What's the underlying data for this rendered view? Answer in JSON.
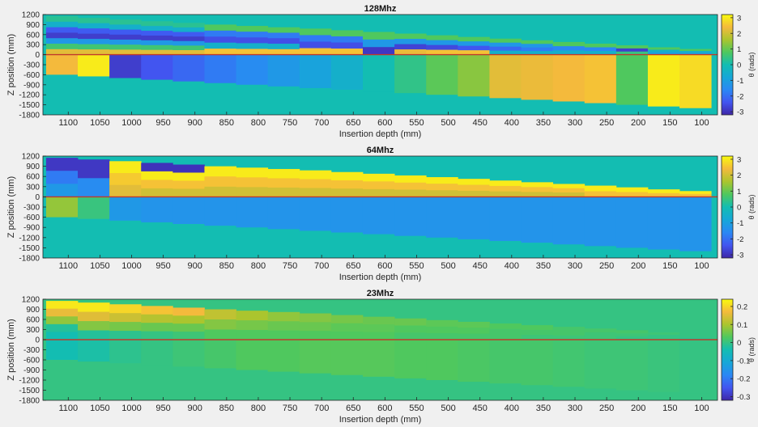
{
  "figure": {
    "colormap": "parula",
    "reference_line_color": "#c0392b",
    "background": "#f0f0f0"
  },
  "chart_data": [
    {
      "type": "heatmap",
      "title": "128Mhz",
      "xlabel": "Insertion depth (mm)",
      "ylabel": "Z position (mm)",
      "colorbar_label": "θ (rads)",
      "xlim": [
        1140,
        75
      ],
      "ylim": [
        -1800,
        1200
      ],
      "x_ticks": [
        "1100",
        "1050",
        "1000",
        "950",
        "900",
        "850",
        "800",
        "750",
        "700",
        "650",
        "600",
        "550",
        "500",
        "450",
        "400",
        "350",
        "300",
        "250",
        "200",
        "150",
        "100"
      ],
      "y_ticks": [
        "1200",
        "900",
        "600",
        "300",
        "0",
        "-300",
        "-600",
        "-900",
        "-1200",
        "-1500",
        "-1800"
      ],
      "clim": [
        -3.2,
        3.2
      ],
      "colorbar_ticks": [
        "3",
        "2",
        "1",
        "0",
        "-1",
        "-2",
        "-3"
      ],
      "reference_line_z": 0,
      "columns": [
        {
          "depth": 1110,
          "ztop": 1150,
          "zbottom": -600,
          "upper": [
            0.3,
            -0.5,
            -2.3,
            -2.8,
            -1.2,
            0.6,
            2.2
          ],
          "lower": 2.4
        },
        {
          "depth": 1060,
          "ztop": 1100,
          "zbottom": -650,
          "upper": [
            0.3,
            -0.5,
            -2.3,
            -2.8,
            -1.2,
            0.6,
            2.2
          ],
          "lower": 3.0
        },
        {
          "depth": 1010,
          "ztop": 1050,
          "zbottom": -700,
          "upper": [
            0.3,
            -0.5,
            -2.3,
            -2.8,
            -1.2,
            0.6,
            2.2
          ],
          "lower": -2.8
        },
        {
          "depth": 960,
          "ztop": 1000,
          "zbottom": -750,
          "upper": [
            0.3,
            -0.5,
            -2.3,
            -2.8,
            -1.2,
            0.6,
            2.2
          ],
          "lower": -2.4
        },
        {
          "depth": 910,
          "ztop": 950,
          "zbottom": -800,
          "upper": [
            0.3,
            -0.5,
            -2.3,
            -2.8,
            -1.2,
            0.6,
            2.2
          ],
          "lower": -2.1
        },
        {
          "depth": 860,
          "ztop": 900,
          "zbottom": -850,
          "upper": [
            0.8,
            -1.8,
            -2.5,
            -0.5,
            2.5
          ],
          "lower": -1.8
        },
        {
          "depth": 810,
          "ztop": 860,
          "zbottom": -900,
          "upper": [
            0.8,
            -1.8,
            -2.5,
            -0.5,
            2.5
          ],
          "lower": -1.5
        },
        {
          "depth": 760,
          "ztop": 820,
          "zbottom": -950,
          "upper": [
            0.8,
            -1.8,
            -2.5,
            -0.5,
            2.5
          ],
          "lower": -1.2
        },
        {
          "depth": 710,
          "ztop": 780,
          "zbottom": -1000,
          "upper": [
            0.8,
            -1.8,
            -2.5,
            2.5
          ],
          "lower": -0.9
        },
        {
          "depth": 660,
          "ztop": 730,
          "zbottom": -1050,
          "upper": [
            0.8,
            -1.8,
            -2.5,
            2.5
          ],
          "lower": -0.5
        },
        {
          "depth": 610,
          "ztop": 680,
          "zbottom": -1100,
          "upper": [
            0.8,
            -1.2,
            -2.9
          ],
          "lower": 0.0
        },
        {
          "depth": 560,
          "ztop": 630,
          "zbottom": -1150,
          "upper": [
            0.8,
            -1.2,
            -2.7,
            2.3
          ],
          "lower": 0.4
        },
        {
          "depth": 510,
          "ztop": 580,
          "zbottom": -1200,
          "upper": [
            0.8,
            -1.2,
            -2.6,
            2.5
          ],
          "lower": 0.9
        },
        {
          "depth": 460,
          "ztop": 530,
          "zbottom": -1250,
          "upper": [
            0.8,
            -1.2,
            -2.4,
            2.5
          ],
          "lower": 1.3
        },
        {
          "depth": 410,
          "ztop": 480,
          "zbottom": -1300,
          "upper": [
            0.8,
            -1.2,
            -2.1,
            -0.5
          ],
          "lower": 2.2
        },
        {
          "depth": 360,
          "ztop": 430,
          "zbottom": -1350,
          "upper": [
            0.8,
            -1.2,
            -1.8,
            -0.5
          ],
          "lower": 2.3
        },
        {
          "depth": 310,
          "ztop": 380,
          "zbottom": -1400,
          "upper": [
            0.8,
            -1.6,
            -0.5
          ],
          "lower": 2.4
        },
        {
          "depth": 260,
          "ztop": 330,
          "zbottom": -1450,
          "upper": [
            0.8,
            -1.6,
            -0.5
          ],
          "lower": 2.5
        },
        {
          "depth": 210,
          "ztop": 280,
          "zbottom": -1500,
          "upper": [
            0.8,
            -2.8,
            0.5
          ],
          "lower": 0.8
        },
        {
          "depth": 160,
          "ztop": 220,
          "zbottom": -1550,
          "upper": [
            0.8,
            -0.5,
            -1.0
          ],
          "lower": 3.0
        },
        {
          "depth": 110,
          "ztop": 170,
          "zbottom": -1600,
          "upper": [
            0.8,
            -0.5,
            -1.0
          ],
          "lower": 2.8
        }
      ]
    },
    {
      "type": "heatmap",
      "title": "64Mhz",
      "xlabel": "Insertion depth (mm)",
      "ylabel": "Z position (mm)",
      "colorbar_label": "θ (rads)",
      "xlim": [
        1140,
        75
      ],
      "ylim": [
        -1800,
        1200
      ],
      "x_ticks": [
        "1100",
        "1050",
        "1000",
        "950",
        "900",
        "850",
        "800",
        "750",
        "700",
        "650",
        "600",
        "550",
        "500",
        "450",
        "400",
        "350",
        "300",
        "250",
        "200",
        "150",
        "100"
      ],
      "y_ticks": [
        "1200",
        "900",
        "600",
        "300",
        "0",
        "-300",
        "-600",
        "-900",
        "-1200",
        "-1500",
        "-1800"
      ],
      "clim": [
        -3.2,
        3.2
      ],
      "colorbar_ticks": [
        "3",
        "2",
        "1",
        "0",
        "-1",
        "-2",
        "-3"
      ],
      "reference_line_z": 0,
      "columns": [
        {
          "depth": 1110,
          "ztop": 1150,
          "zbottom": -600,
          "upper": [
            -2.9,
            -1.8,
            -1.2
          ],
          "lower": 1.4
        },
        {
          "depth": 1060,
          "ztop": 1100,
          "zbottom": -650,
          "upper": [
            -2.9,
            -1.5
          ],
          "lower": 0.5
        },
        {
          "depth": 1010,
          "ztop": 1050,
          "zbottom": -700,
          "upper": [
            3.0,
            2.6,
            2.2
          ],
          "lower": -1.2
        },
        {
          "depth": 960,
          "ztop": 1000,
          "zbottom": -750,
          "upper": [
            -3.0,
            3.0,
            2.5,
            2.0
          ],
          "lower": -1.3
        },
        {
          "depth": 910,
          "ztop": 950,
          "zbottom": -800,
          "upper": [
            -3.0,
            3.0,
            2.5,
            2.0
          ],
          "lower": -1.3
        },
        {
          "depth": 860,
          "ztop": 900,
          "zbottom": -850,
          "upper": [
            3.0,
            2.5,
            2.0
          ],
          "lower": -1.3
        },
        {
          "depth": 810,
          "ztop": 860,
          "zbottom": -900,
          "upper": [
            3.0,
            2.5,
            2.0
          ],
          "lower": -1.3
        },
        {
          "depth": 760,
          "ztop": 820,
          "zbottom": -950,
          "upper": [
            3.0,
            2.5,
            2.0
          ],
          "lower": -1.3
        },
        {
          "depth": 710,
          "ztop": 780,
          "zbottom": -1000,
          "upper": [
            3.0,
            2.5,
            2.0
          ],
          "lower": -1.3
        },
        {
          "depth": 660,
          "ztop": 730,
          "zbottom": -1050,
          "upper": [
            3.0,
            2.5,
            2.0
          ],
          "lower": -1.3
        },
        {
          "depth": 610,
          "ztop": 680,
          "zbottom": -1100,
          "upper": [
            3.0,
            2.5,
            2.0
          ],
          "lower": -1.3
        },
        {
          "depth": 560,
          "ztop": 630,
          "zbottom": -1150,
          "upper": [
            3.0,
            2.5,
            2.0
          ],
          "lower": -1.3
        },
        {
          "depth": 510,
          "ztop": 580,
          "zbottom": -1200,
          "upper": [
            3.0,
            2.5,
            2.0
          ],
          "lower": -1.3
        },
        {
          "depth": 460,
          "ztop": 530,
          "zbottom": -1250,
          "upper": [
            3.0,
            2.5,
            2.0
          ],
          "lower": -1.3
        },
        {
          "depth": 410,
          "ztop": 480,
          "zbottom": -1300,
          "upper": [
            3.0,
            2.5,
            2.0
          ],
          "lower": -1.3
        },
        {
          "depth": 360,
          "ztop": 430,
          "zbottom": -1350,
          "upper": [
            3.0,
            2.5,
            2.0
          ],
          "lower": -1.3
        },
        {
          "depth": 310,
          "ztop": 380,
          "zbottom": -1400,
          "upper": [
            3.0,
            2.5,
            2.0
          ],
          "lower": -1.3
        },
        {
          "depth": 260,
          "ztop": 330,
          "zbottom": -1450,
          "upper": [
            3.0,
            2.5
          ],
          "lower": -1.3
        },
        {
          "depth": 210,
          "ztop": 280,
          "zbottom": -1500,
          "upper": [
            3.0,
            2.5
          ],
          "lower": -1.3
        },
        {
          "depth": 160,
          "ztop": 220,
          "zbottom": -1550,
          "upper": [
            3.0,
            2.5
          ],
          "lower": -1.3
        },
        {
          "depth": 110,
          "ztop": 170,
          "zbottom": -1600,
          "upper": [
            3.0,
            2.5
          ],
          "lower": -1.3
        }
      ]
    },
    {
      "type": "heatmap",
      "title": "23Mhz",
      "xlabel": "Insertion depth (mm)",
      "ylabel": "Z position (mm)",
      "colorbar_label": "θ (rads)",
      "xlim": [
        1140,
        75
      ],
      "ylim": [
        -1800,
        1200
      ],
      "x_ticks": [
        "1100",
        "1050",
        "1000",
        "950",
        "900",
        "850",
        "800",
        "750",
        "700",
        "650",
        "600",
        "550",
        "500",
        "450",
        "400",
        "350",
        "300",
        "250",
        "200",
        "150",
        "100"
      ],
      "y_ticks": [
        "1200",
        "900",
        "600",
        "300",
        "0",
        "-300",
        "-600",
        "-900",
        "-1200",
        "-1500",
        "-1800"
      ],
      "clim": [
        -0.32,
        0.24
      ],
      "colorbar_ticks": [
        "0.2",
        "0.1",
        "0",
        "-0.1",
        "-0.2",
        "-0.3"
      ],
      "reference_line_z": 0,
      "columns": [
        {
          "depth": 1110,
          "ztop": 1150,
          "zbottom": -600,
          "upper": [
            0.22,
            0.16,
            0.08,
            -0.02,
            -0.04
          ],
          "lower": -0.04
        },
        {
          "depth": 1060,
          "ztop": 1100,
          "zbottom": -650,
          "upper": [
            0.22,
            0.15,
            0.07,
            -0.02
          ],
          "lower": -0.03
        },
        {
          "depth": 1010,
          "ztop": 1050,
          "zbottom": -700,
          "upper": [
            0.2,
            0.13,
            0.06,
            -0.01
          ],
          "lower": -0.01
        },
        {
          "depth": 960,
          "ztop": 1000,
          "zbottom": -750,
          "upper": [
            0.18,
            0.11,
            0.05,
            0.0
          ],
          "lower": 0.0
        },
        {
          "depth": 910,
          "ztop": 950,
          "zbottom": -800,
          "upper": [
            0.17,
            0.1,
            0.05,
            0.01
          ],
          "lower": 0.01
        },
        {
          "depth": 860,
          "ztop": 900,
          "zbottom": -850,
          "upper": [
            0.12,
            0.07,
            0.03
          ],
          "lower": 0.02
        },
        {
          "depth": 810,
          "ztop": 860,
          "zbottom": -900,
          "upper": [
            0.1,
            0.06,
            0.03
          ],
          "lower": 0.03
        },
        {
          "depth": 760,
          "ztop": 820,
          "zbottom": -950,
          "upper": [
            0.08,
            0.05,
            0.03
          ],
          "lower": 0.03
        },
        {
          "depth": 710,
          "ztop": 780,
          "zbottom": -1000,
          "upper": [
            0.07,
            0.05,
            0.03
          ],
          "lower": 0.035
        },
        {
          "depth": 660,
          "ztop": 730,
          "zbottom": -1050,
          "upper": [
            0.06,
            0.04,
            0.03
          ],
          "lower": 0.035
        },
        {
          "depth": 610,
          "ztop": 680,
          "zbottom": -1100,
          "upper": [
            0.05,
            0.04,
            0.03
          ],
          "lower": 0.035
        },
        {
          "depth": 560,
          "ztop": 630,
          "zbottom": -1150,
          "upper": [
            0.05,
            0.03,
            0.02
          ],
          "lower": 0.03
        },
        {
          "depth": 510,
          "ztop": 580,
          "zbottom": -1200,
          "upper": [
            0.04,
            0.03,
            0.02
          ],
          "lower": 0.03
        },
        {
          "depth": 460,
          "ztop": 530,
          "zbottom": -1250,
          "upper": [
            0.04,
            0.03,
            0.02
          ],
          "lower": 0.025
        },
        {
          "depth": 410,
          "ztop": 480,
          "zbottom": -1300,
          "upper": [
            0.03,
            0.02,
            0.02
          ],
          "lower": 0.02
        },
        {
          "depth": 360,
          "ztop": 430,
          "zbottom": -1350,
          "upper": [
            0.03,
            0.02,
            0.01
          ],
          "lower": 0.02
        },
        {
          "depth": 310,
          "ztop": 380,
          "zbottom": -1400,
          "upper": [
            0.02,
            0.02,
            0.01
          ],
          "lower": 0.015
        },
        {
          "depth": 260,
          "ztop": 330,
          "zbottom": -1450,
          "upper": [
            0.02,
            0.01,
            0.01
          ],
          "lower": 0.01
        },
        {
          "depth": 210,
          "ztop": 280,
          "zbottom": -1500,
          "upper": [
            0.02,
            0.01,
            0.0
          ],
          "lower": 0.01
        },
        {
          "depth": 160,
          "ztop": 220,
          "zbottom": -1550,
          "upper": [
            0.01,
            0.0,
            0.0
          ],
          "lower": 0.005
        },
        {
          "depth": 110,
          "ztop": 170,
          "zbottom": -1600,
          "upper": [
            0.0,
            0.0,
            -0.01
          ],
          "lower": 0.0
        }
      ]
    }
  ]
}
